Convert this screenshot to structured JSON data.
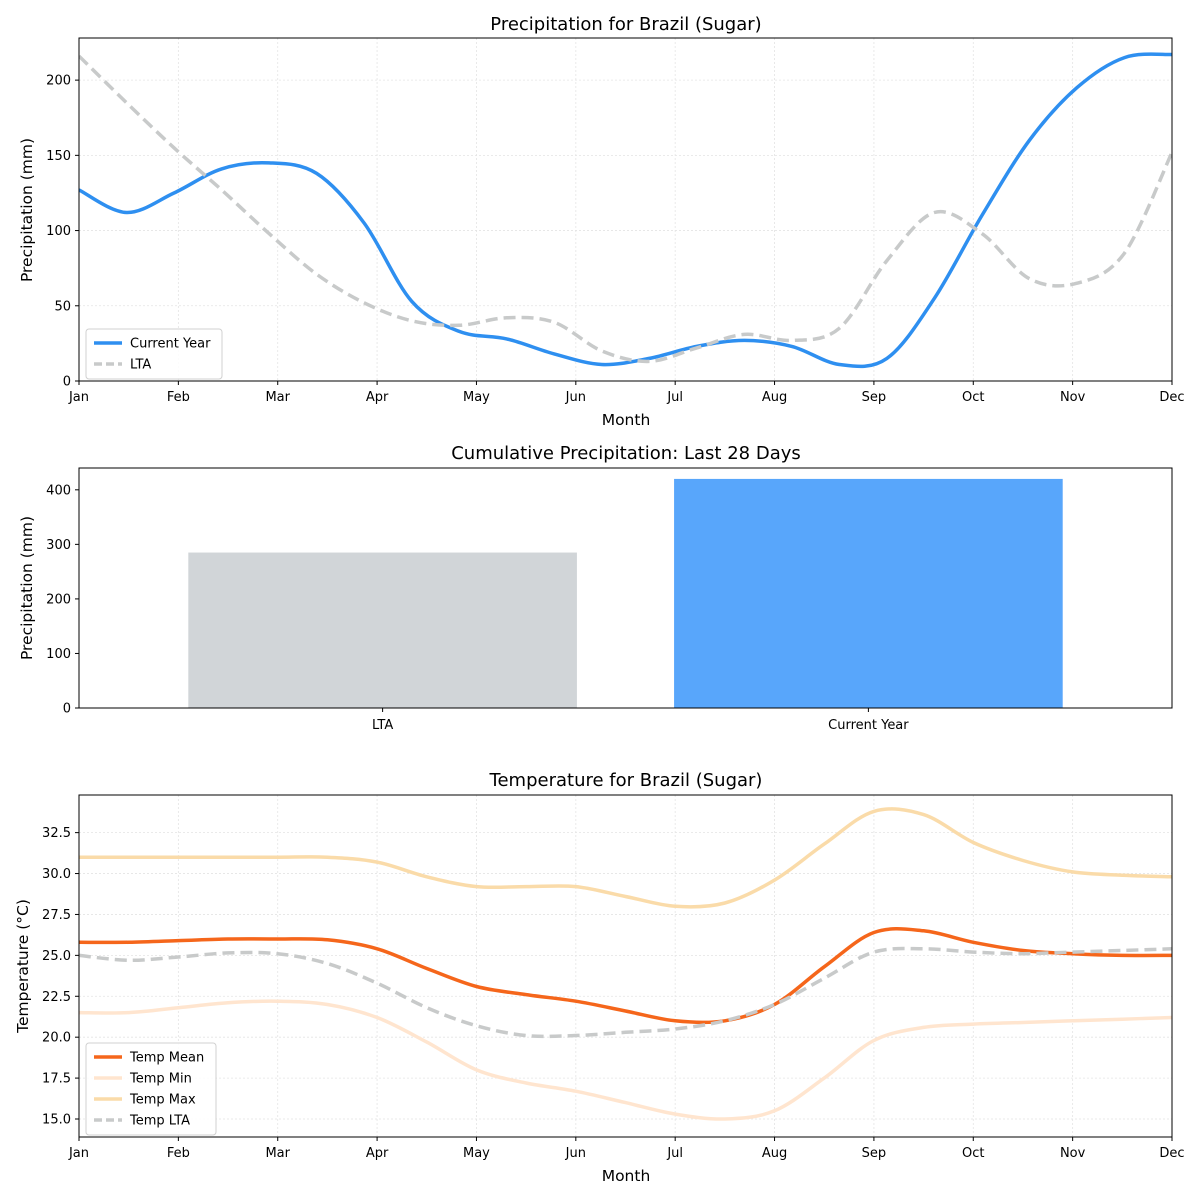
{
  "chart_data": [
    {
      "type": "line",
      "title": "Precipitation for Brazil (Sugar)",
      "xlabel": "Month",
      "ylabel": "Precipitation (mm)",
      "xticks": [
        "Jan",
        "Feb",
        "Mar",
        "Apr",
        "May",
        "Jun",
        "Jul",
        "Aug",
        "Sep",
        "Oct",
        "Nov",
        "Dec"
      ],
      "ylim": [
        0,
        228
      ],
      "yticks": [
        0,
        50,
        100,
        150,
        200
      ],
      "grid": true,
      "legend": "lower-left",
      "series": [
        {
          "name": "Current Year",
          "color": "#2e8ff0",
          "dash": "solid",
          "values": [
            127,
            112,
            125,
            141,
            145,
            138,
            105,
            53,
            33,
            28,
            18,
            11,
            15,
            23,
            27,
            23,
            11,
            15,
            55,
            110,
            160,
            195,
            215,
            217
          ]
        },
        {
          "name": "LTA",
          "color": "#c8caca",
          "dash": "dashed",
          "values": [
            216,
            185,
            155,
            127,
            98,
            71,
            52,
            40,
            37,
            42,
            39,
            20,
            13,
            22,
            31,
            27,
            35,
            80,
            112,
            98,
            68,
            65,
            85,
            152
          ]
        }
      ]
    },
    {
      "type": "bar",
      "title": "Cumulative Precipitation: Last 28 Days",
      "ylabel": "Precipitation (mm)",
      "categories": [
        "LTA",
        "Current Year"
      ],
      "values": [
        285,
        420
      ],
      "colors": [
        "#d1d5d8",
        "#58a6fb"
      ],
      "ylim": [
        0,
        440
      ],
      "yticks": [
        0,
        100,
        200,
        300,
        400
      ]
    },
    {
      "type": "line",
      "title": "Temperature for Brazil (Sugar)",
      "xlabel": "Month",
      "ylabel": "Temperature (°C)",
      "xticks": [
        "Jan",
        "Feb",
        "Mar",
        "Apr",
        "May",
        "Jun",
        "Jul",
        "Aug",
        "Sep",
        "Oct",
        "Nov",
        "Dec"
      ],
      "ylim": [
        13.9,
        34.8
      ],
      "yticks": [
        15.0,
        17.5,
        20.0,
        22.5,
        25.0,
        27.5,
        30.0,
        32.5
      ],
      "grid": true,
      "legend": "lower-left",
      "series": [
        {
          "name": "Temp Mean",
          "color": "#f5661b",
          "dash": "solid",
          "values": [
            25.8,
            25.8,
            25.9,
            26.0,
            26.0,
            25.95,
            25.4,
            24.2,
            23.1,
            22.6,
            22.2,
            21.6,
            21.0,
            21.0,
            22.0,
            24.3,
            26.4,
            26.5,
            25.8,
            25.3,
            25.1,
            25.0,
            25.0
          ]
        },
        {
          "name": "Temp Min",
          "color": "#ffe5cf",
          "dash": "solid",
          "values": [
            21.5,
            21.5,
            21.8,
            22.1,
            22.2,
            22.0,
            21.2,
            19.7,
            18.0,
            17.2,
            16.7,
            16.0,
            15.3,
            15.0,
            15.5,
            17.5,
            19.8,
            20.6,
            20.8,
            20.9,
            21.0,
            21.1,
            21.2
          ]
        },
        {
          "name": "Temp Max",
          "color": "#fadba9",
          "dash": "solid",
          "values": [
            31.0,
            31.0,
            31.0,
            31.0,
            31.0,
            31.0,
            30.7,
            29.8,
            29.2,
            29.2,
            29.2,
            28.6,
            28.0,
            28.2,
            29.6,
            31.8,
            33.8,
            33.6,
            31.9,
            30.8,
            30.1,
            29.9,
            29.8
          ]
        },
        {
          "name": "Temp LTA",
          "color": "#c8caca",
          "dash": "dashed",
          "values": [
            25.0,
            24.7,
            24.9,
            25.15,
            25.1,
            24.5,
            23.3,
            21.8,
            20.7,
            20.1,
            20.1,
            20.3,
            20.5,
            21.0,
            22.0,
            23.6,
            25.2,
            25.4,
            25.2,
            25.1,
            25.2,
            25.3,
            25.4
          ]
        }
      ]
    }
  ]
}
